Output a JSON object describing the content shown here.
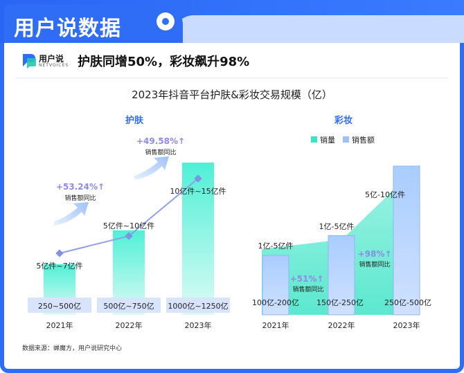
{
  "header": {
    "title": "用户说数据"
  },
  "brand": {
    "name": "用户说",
    "sub": "NETVOICES"
  },
  "headline": "护肤同增50%，彩妆飙升98%",
  "source": "数据来源：蝉魔方，用户说研究中心",
  "chart_data": {
    "title": "2023年抖音平台护肤&彩妆交易规模（亿）",
    "panels": [
      {
        "name": "护肤",
        "type": "bar+line",
        "categories": [
          "2021年",
          "2022年",
          "2023年"
        ],
        "sales_amount_labels": [
          "250~500亿",
          "500亿~750亿",
          "1000亿~1250亿"
        ],
        "sales_amount_mid": [
          375,
          625,
          1125
        ],
        "volume_labels": [
          "5亿件~7亿件",
          "5亿件~10亿件",
          "10亿件~15亿件"
        ],
        "volume_mid": [
          6,
          7.5,
          12.5
        ],
        "growth": [
          {
            "value": "+53.24%↑",
            "label": "销售额同比"
          },
          {
            "value": "+49.58%↑",
            "label": "销售额同比"
          }
        ]
      },
      {
        "name": "彩妆",
        "type": "bar+area",
        "legend": [
          "销量",
          "销售额"
        ],
        "categories": [
          "2021年",
          "2022年",
          "2023年"
        ],
        "sales_amount_labels": [
          "100亿-200亿",
          "150亿-250亿",
          "250亿-500亿"
        ],
        "sales_amount_mid": [
          150,
          200,
          375
        ],
        "volume_labels": [
          "1亿-5亿件",
          "1亿-5亿件",
          "5亿-10亿件"
        ],
        "volume_mid": [
          3,
          3,
          7.5
        ],
        "growth": [
          {
            "value": "+51%↑",
            "label": "销售额同比"
          },
          {
            "value": "+98%↑",
            "label": "销售额同比"
          }
        ]
      }
    ]
  }
}
